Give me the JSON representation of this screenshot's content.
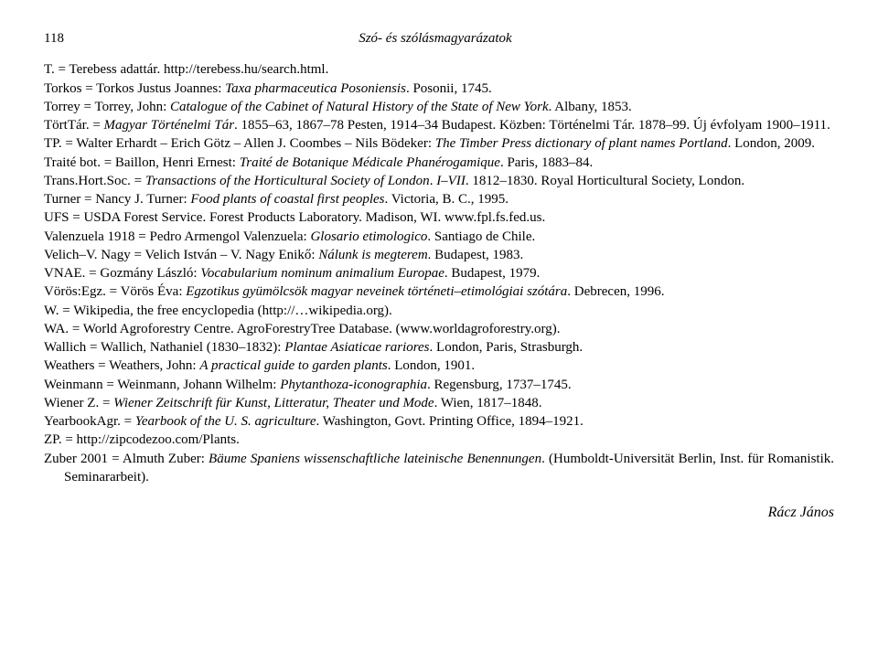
{
  "header": {
    "page_number": "118",
    "running_head": "Szó- és szólásmagyarázatok"
  },
  "entries": [
    {
      "parts": [
        {
          "t": "T. = Terebess adattár. http://terebess.hu/search.html."
        }
      ]
    },
    {
      "parts": [
        {
          "t": "Torkos = Torkos Justus Joannes: "
        },
        {
          "t": "Taxa pharmaceutica Posoniensis",
          "i": true
        },
        {
          "t": ". Posonii, 1745."
        }
      ]
    },
    {
      "parts": [
        {
          "t": "Torrey = Torrey, John: "
        },
        {
          "t": "Catalogue of the Cabinet of Natural History of the State of New York",
          "i": true
        },
        {
          "t": ". Albany, 1853."
        }
      ]
    },
    {
      "parts": [
        {
          "t": "TörtTár. = "
        },
        {
          "t": "Magyar Történelmi Tár",
          "i": true
        },
        {
          "t": ". 1855–63, 1867–78 Pesten, 1914–34 Budapest. Közben: Történelmi Tár. 1878–99. Új évfolyam 1900–1911."
        }
      ]
    },
    {
      "parts": [
        {
          "t": "TP. = Walter Erhardt – Erich Götz – Allen J. Coombes – Nils Bödeker: "
        },
        {
          "t": "The Timber Press dictionary of plant names Portland",
          "i": true
        },
        {
          "t": ". London, 2009."
        }
      ]
    },
    {
      "parts": [
        {
          "t": "Traité bot. = Baillon, Henri Ernest: "
        },
        {
          "t": "Traité de Botanique Médicale Phanérogamique",
          "i": true
        },
        {
          "t": ". Paris, 1883–84."
        }
      ]
    },
    {
      "parts": [
        {
          "t": "Trans.Hort.Soc. = "
        },
        {
          "t": "Transactions of the Horticultural Society of London",
          "i": true
        },
        {
          "t": ". "
        },
        {
          "t": "I–VII",
          "i": true
        },
        {
          "t": ". 1812–1830. Royal Horticultural Society, London."
        }
      ]
    },
    {
      "parts": [
        {
          "t": "Turner = Nancy J. Turner: "
        },
        {
          "t": "Food plants of coastal first peoples",
          "i": true
        },
        {
          "t": ". Victoria, B. C., 1995."
        }
      ]
    },
    {
      "parts": [
        {
          "t": "UFS = USDA Forest Service. Forest Products Laboratory. Madison, WI. www.fpl.fs.fed.us."
        }
      ]
    },
    {
      "parts": [
        {
          "t": "Valenzuela 1918 = Pedro Armengol Valenzuela: "
        },
        {
          "t": "Glosario etimologico",
          "i": true
        },
        {
          "t": ". Santiago de Chile."
        }
      ]
    },
    {
      "parts": [
        {
          "t": "Velich–V. Nagy = Velich István – V. Nagy Enikő: "
        },
        {
          "t": "Nálunk is megterem",
          "i": true
        },
        {
          "t": ". Budapest, 1983."
        }
      ]
    },
    {
      "parts": [
        {
          "t": "VNAE. = Gozmány László: "
        },
        {
          "t": "Vocabularium nominum animalium Europae",
          "i": true
        },
        {
          "t": ". Budapest, 1979."
        }
      ]
    },
    {
      "parts": [
        {
          "t": "Vörös:Egz. = Vörös Éva: "
        },
        {
          "t": "Egzotikus gyümölcsök magyar neveinek történeti–etimológiai szótára",
          "i": true
        },
        {
          "t": ". Debrecen, 1996."
        }
      ]
    },
    {
      "parts": [
        {
          "t": "W. = Wikipedia, the free encyclopedia (http://…wikipedia.org)."
        }
      ]
    },
    {
      "parts": [
        {
          "t": "WA. = World Agroforestry Centre. AgroForestryTree Database. (www.worldagroforestry.org)."
        }
      ]
    },
    {
      "parts": [
        {
          "t": "Wallich = Wallich, Nathaniel (1830–1832): "
        },
        {
          "t": "Plantae Asiaticae rariores",
          "i": true
        },
        {
          "t": ". London, Paris, Strasburgh."
        }
      ]
    },
    {
      "parts": [
        {
          "t": "Weathers = Weathers, John: "
        },
        {
          "t": "A practical guide to garden plants",
          "i": true
        },
        {
          "t": ". London, 1901."
        }
      ]
    },
    {
      "parts": [
        {
          "t": "Weinmann = Weinmann, Johann Wilhelm: "
        },
        {
          "t": "Phytanthoza-iconographia",
          "i": true
        },
        {
          "t": ". Regensburg, 1737–1745."
        }
      ]
    },
    {
      "parts": [
        {
          "t": "Wiener Z. = "
        },
        {
          "t": "Wiener Zeitschrift für Kunst, Litteratur, Theater und Mode",
          "i": true
        },
        {
          "t": ". Wien, 1817–1848."
        }
      ]
    },
    {
      "parts": [
        {
          "t": "YearbookAgr. = "
        },
        {
          "t": "Yearbook of the U. S. agriculture",
          "i": true
        },
        {
          "t": ". Washington, Govt. Printing Office, 1894–1921."
        }
      ]
    },
    {
      "parts": [
        {
          "t": "ZP. = http://zipcodezoo.com/Plants."
        }
      ]
    },
    {
      "parts": [
        {
          "t": "Zuber 2001 = Almuth Zuber: "
        },
        {
          "t": "Bäume Spaniens wissenschaftliche lateinische Benennungen",
          "i": true
        },
        {
          "t": ". (Humboldt-Universität Berlin, Inst. für Romanistik. Seminararbeit)."
        }
      ]
    }
  ],
  "author": "Rácz János"
}
